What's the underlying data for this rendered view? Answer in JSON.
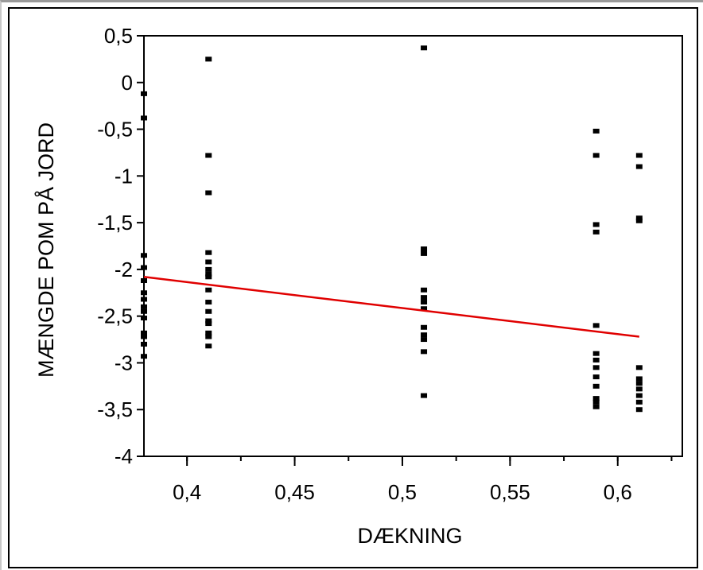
{
  "chart_data": {
    "type": "scatter",
    "title": "",
    "xlabel": "DÆKNING",
    "ylabel": "MÆNGDE POM PÅ JORD",
    "xlim": [
      0.38,
      0.63
    ],
    "ylim": [
      -4,
      0.5
    ],
    "x_ticks": [
      0.4,
      0.45,
      0.5,
      0.55,
      0.6
    ],
    "x_tick_labels": [
      "0,4",
      "0,45",
      "0,5",
      "0,55",
      "0,6"
    ],
    "y_ticks": [
      0.5,
      0,
      -0.5,
      -1,
      -1.5,
      -2,
      -2.5,
      -3,
      -3.5,
      -4
    ],
    "y_tick_labels": [
      "0,5",
      "0",
      "-0,5",
      "-1",
      "-1,5",
      "-2",
      "-2,5",
      "-3",
      "-3,5",
      "-4"
    ],
    "grid": false,
    "colors": {
      "points": "#000000",
      "fit_line": "#e00000"
    },
    "series": [
      {
        "points": [
          [
            0.38,
            -0.12
          ],
          [
            0.38,
            -0.38
          ],
          [
            0.38,
            -1.85
          ],
          [
            0.38,
            -1.98
          ],
          [
            0.38,
            -2.12
          ],
          [
            0.38,
            -2.25
          ],
          [
            0.38,
            -2.32
          ],
          [
            0.38,
            -2.4
          ],
          [
            0.38,
            -2.45
          ],
          [
            0.38,
            -2.52
          ],
          [
            0.38,
            -2.68
          ],
          [
            0.38,
            -2.72
          ],
          [
            0.38,
            -2.8
          ],
          [
            0.38,
            -2.93
          ],
          [
            0.41,
            0.25
          ],
          [
            0.41,
            -0.78
          ],
          [
            0.41,
            -1.18
          ],
          [
            0.41,
            -1.82
          ],
          [
            0.41,
            -1.92
          ],
          [
            0.41,
            -2.0
          ],
          [
            0.41,
            -2.05
          ],
          [
            0.41,
            -2.08
          ],
          [
            0.41,
            -2.22
          ],
          [
            0.41,
            -2.35
          ],
          [
            0.41,
            -2.45
          ],
          [
            0.41,
            -2.55
          ],
          [
            0.41,
            -2.58
          ],
          [
            0.41,
            -2.68
          ],
          [
            0.41,
            -2.72
          ],
          [
            0.41,
            -2.82
          ],
          [
            0.51,
            0.37
          ],
          [
            0.51,
            -1.78
          ],
          [
            0.51,
            -1.83
          ],
          [
            0.51,
            -2.22
          ],
          [
            0.51,
            -2.3
          ],
          [
            0.51,
            -2.35
          ],
          [
            0.51,
            -2.42
          ],
          [
            0.51,
            -2.62
          ],
          [
            0.51,
            -2.7
          ],
          [
            0.51,
            -2.75
          ],
          [
            0.51,
            -2.88
          ],
          [
            0.51,
            -3.35
          ],
          [
            0.59,
            -0.52
          ],
          [
            0.59,
            -0.78
          ],
          [
            0.59,
            -1.52
          ],
          [
            0.59,
            -1.6
          ],
          [
            0.59,
            -2.6
          ],
          [
            0.59,
            -2.9
          ],
          [
            0.59,
            -2.97
          ],
          [
            0.59,
            -3.05
          ],
          [
            0.59,
            -3.15
          ],
          [
            0.59,
            -3.25
          ],
          [
            0.59,
            -3.38
          ],
          [
            0.59,
            -3.42
          ],
          [
            0.59,
            -3.47
          ],
          [
            0.61,
            -0.78
          ],
          [
            0.61,
            -0.9
          ],
          [
            0.61,
            -1.45
          ],
          [
            0.61,
            -1.48
          ],
          [
            0.61,
            -3.05
          ],
          [
            0.61,
            -3.17
          ],
          [
            0.61,
            -3.22
          ],
          [
            0.61,
            -3.28
          ],
          [
            0.61,
            -3.35
          ],
          [
            0.61,
            -3.42
          ],
          [
            0.61,
            -3.5
          ]
        ]
      }
    ],
    "fit_line": {
      "type": "linear",
      "x": [
        0.38,
        0.61
      ],
      "y": [
        -2.08,
        -2.72
      ]
    }
  }
}
